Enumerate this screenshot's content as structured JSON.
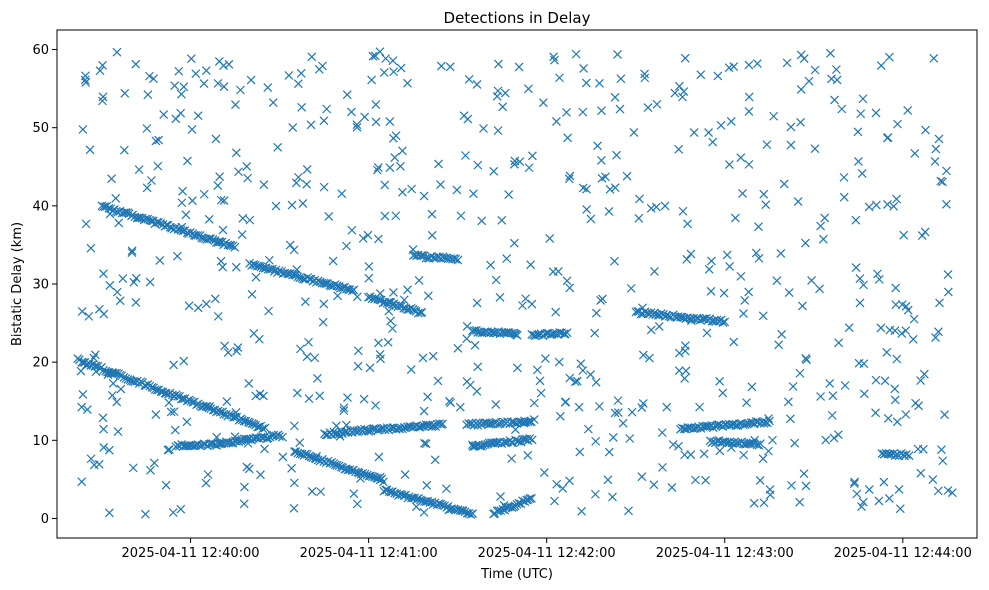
{
  "chart_data": {
    "type": "scatter",
    "title": "Detections in Delay",
    "xlabel": "Time (UTC)",
    "ylabel": "Bistatic Delay (km)",
    "marker": "x",
    "color": "#1f77b4",
    "grid": false,
    "legend": "none",
    "xlim": [
      "2025-04-11 12:39:15",
      "2025-04-11 12:44:25"
    ],
    "ylim": [
      -2.5,
      62.5
    ],
    "xticks": [
      "2025-04-11 12:40:00",
      "2025-04-11 12:41:00",
      "2025-04-11 12:42:00",
      "2025-04-11 12:43:00",
      "2025-04-11 12:44:00"
    ],
    "yticks": [
      0,
      10,
      20,
      30,
      40,
      50,
      60
    ],
    "tracks": [
      {
        "start": "2025-04-11 12:39:30",
        "end": "2025-04-11 12:40:15",
        "y_start": 40.0,
        "y_end": 34.7
      },
      {
        "start": "2025-04-11 12:40:20",
        "end": "2025-04-11 12:40:55",
        "y_start": 32.5,
        "y_end": 29.2
      },
      {
        "start": "2025-04-11 12:41:00",
        "end": "2025-04-11 12:41:18",
        "y_start": 28.3,
        "y_end": 26.3
      },
      {
        "start": "2025-04-11 12:39:22",
        "end": "2025-04-11 12:40:25",
        "y_start": 20.3,
        "y_end": 11.5
      },
      {
        "start": "2025-04-11 12:40:35",
        "end": "2025-04-11 12:41:05",
        "y_start": 8.6,
        "y_end": 4.8
      },
      {
        "start": "2025-04-11 12:41:05",
        "end": "2025-04-11 12:41:35",
        "y_start": 3.6,
        "y_end": 0.6
      },
      {
        "start": "2025-04-11 12:41:42",
        "end": "2025-04-11 12:41:55",
        "y_start": 0.6,
        "y_end": 2.6
      },
      {
        "start": "2025-04-11 12:39:55",
        "end": "2025-04-11 12:40:10",
        "y_start": 9.3,
        "y_end": 9.5
      },
      {
        "start": "2025-04-11 12:40:10",
        "end": "2025-04-11 12:40:30",
        "y_start": 9.6,
        "y_end": 10.6
      },
      {
        "start": "2025-04-11 12:40:45",
        "end": "2025-04-11 12:41:00",
        "y_start": 10.8,
        "y_end": 11.3
      },
      {
        "start": "2025-04-11 12:41:00",
        "end": "2025-04-11 12:41:25",
        "y_start": 11.3,
        "y_end": 12.0
      },
      {
        "start": "2025-04-11 12:41:33",
        "end": "2025-04-11 12:41:55",
        "y_start": 12.0,
        "y_end": 12.4
      },
      {
        "start": "2025-04-11 12:41:35",
        "end": "2025-04-11 12:41:55",
        "y_start": 9.3,
        "y_end": 10.1
      },
      {
        "start": "2025-04-11 12:41:35",
        "end": "2025-04-11 12:41:50",
        "y_start": 24.0,
        "y_end": 23.6
      },
      {
        "start": "2025-04-11 12:41:55",
        "end": "2025-04-11 12:42:07",
        "y_start": 23.4,
        "y_end": 23.7
      },
      {
        "start": "2025-04-11 12:42:30",
        "end": "2025-04-11 12:43:00",
        "y_start": 26.4,
        "y_end": 25.2
      },
      {
        "start": "2025-04-11 12:42:45",
        "end": "2025-04-11 12:43:15",
        "y_start": 11.4,
        "y_end": 12.4
      },
      {
        "start": "2025-04-11 12:42:55",
        "end": "2025-04-11 12:43:12",
        "y_start": 9.9,
        "y_end": 9.5
      },
      {
        "start": "2025-04-11 12:43:53",
        "end": "2025-04-11 12:44:02",
        "y_start": 8.3,
        "y_end": 8.1
      },
      {
        "start": "2025-04-11 12:41:15",
        "end": "2025-04-11 12:41:30",
        "y_start": 33.6,
        "y_end": 33.2
      }
    ],
    "scattered_points": {
      "count": 700,
      "x_range": [
        "2025-04-11 12:39:22",
        "2025-04-11 12:44:18"
      ],
      "y_range": [
        0.5,
        59.8
      ]
    }
  }
}
